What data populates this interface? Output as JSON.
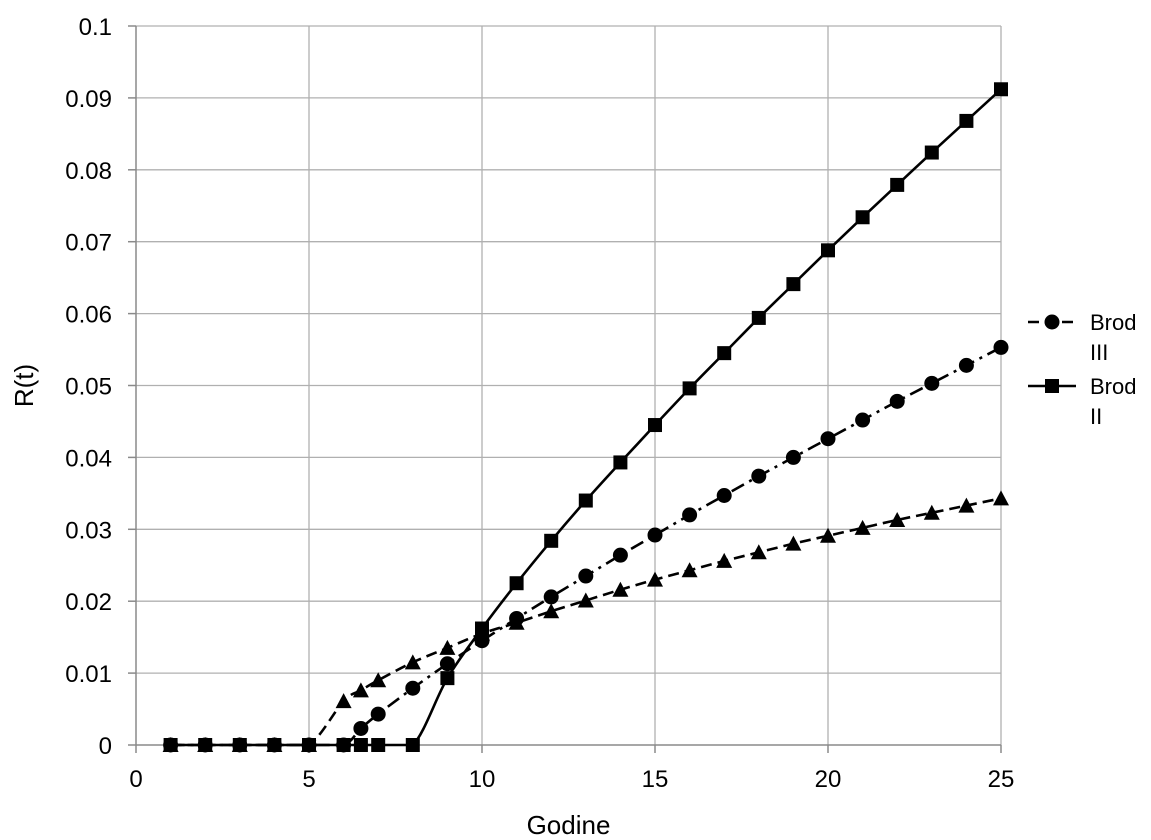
{
  "chart_data": {
    "type": "line",
    "title": "",
    "xlabel": "Godine",
    "ylabel": "R(t)",
    "xlim": [
      0,
      25
    ],
    "ylim": [
      0,
      0.1
    ],
    "xticks": [
      0,
      5,
      10,
      15,
      20,
      25
    ],
    "yticks": [
      0,
      0.01,
      0.02,
      0.03,
      0.04,
      0.05,
      0.06,
      0.07,
      0.08,
      0.09,
      0.1
    ],
    "xtick_labels": [
      "0",
      "5",
      "10",
      "15",
      "20",
      "25"
    ],
    "ytick_labels": [
      "0",
      "0.01",
      "0.02",
      "0.03",
      "0.04",
      "0.05",
      "0.06",
      "0.07",
      "0.08",
      "0.09",
      "0.1"
    ],
    "grid": true,
    "legend_position": "right",
    "series": [
      {
        "name": "Brod III",
        "legend_lines": [
          "Brod",
          "III"
        ],
        "marker": "circle",
        "line_style": "dash-dot",
        "color": "#000000",
        "x": [
          1,
          2,
          3,
          4,
          5,
          6,
          6.5,
          7,
          8,
          9,
          10,
          11,
          12,
          13,
          14,
          15,
          16,
          17,
          18,
          19,
          20,
          21,
          22,
          23,
          24,
          25
        ],
        "y": [
          0,
          0,
          0,
          0,
          0,
          0,
          0.0023,
          0.0043,
          0.0079,
          0.0113,
          0.0145,
          0.0176,
          0.0206,
          0.0235,
          0.0264,
          0.0292,
          0.032,
          0.0347,
          0.0374,
          0.04,
          0.0426,
          0.0452,
          0.0478,
          0.0503,
          0.0528,
          0.0553
        ]
      },
      {
        "name": "Brod II",
        "legend_lines": [
          "Brod",
          "II"
        ],
        "marker": "square",
        "line_style": "solid",
        "color": "#000000",
        "x": [
          1,
          2,
          3,
          4,
          5,
          6,
          6.5,
          7,
          8,
          9,
          10,
          11,
          12,
          13,
          14,
          15,
          16,
          17,
          18,
          19,
          20,
          21,
          22,
          23,
          24,
          25
        ],
        "y": [
          0,
          0,
          0,
          0,
          0,
          0,
          0,
          0,
          0,
          0.0093,
          0.0162,
          0.0225,
          0.0284,
          0.034,
          0.0393,
          0.0445,
          0.0496,
          0.0545,
          0.0594,
          0.0641,
          0.0688,
          0.0734,
          0.0779,
          0.0824,
          0.0868,
          0.0912
        ]
      },
      {
        "marker": "triangle",
        "line_style": "dashed",
        "color": "#000000",
        "x": [
          1,
          2,
          3,
          4,
          5,
          6,
          6.5,
          7,
          8,
          9,
          10,
          11,
          12,
          13,
          14,
          15,
          16,
          17,
          18,
          19,
          20,
          21,
          22,
          23,
          24,
          25
        ],
        "y": [
          0,
          0,
          0,
          0,
          0,
          0.0061,
          0.0076,
          0.009,
          0.0115,
          0.0135,
          0.0155,
          0.017,
          0.0186,
          0.0201,
          0.0216,
          0.023,
          0.0243,
          0.0256,
          0.0268,
          0.028,
          0.0291,
          0.0302,
          0.0313,
          0.0323,
          0.0333,
          0.0343
        ]
      }
    ]
  }
}
